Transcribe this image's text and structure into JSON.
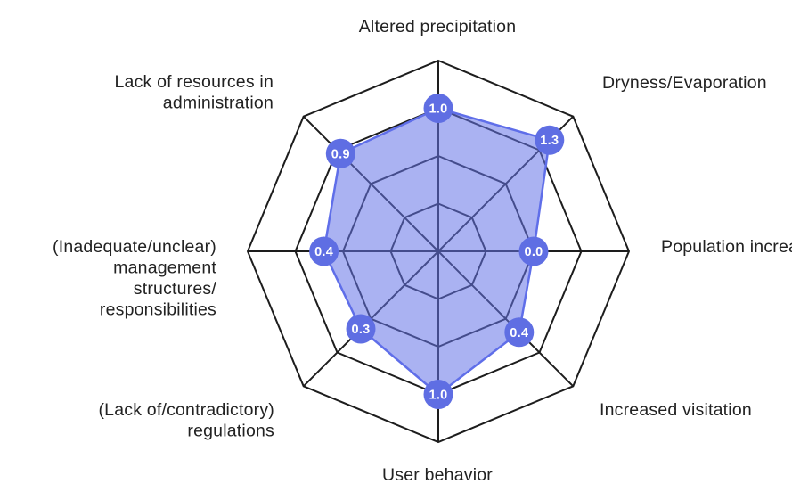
{
  "chart_data": {
    "type": "radar",
    "title": "",
    "axes_count": 8,
    "categories": [
      "Altered precipitation",
      "Dryness/Evaporation",
      "Population increase",
      "Increased visitation",
      "User behavior",
      "(Lack of/contradictory) regulations",
      "(Inadequate/unclear) management structures/responsibilities",
      "Lack of resources in administration"
    ],
    "axes": [
      {
        "label": "Altered precipitation",
        "lines": [
          "Altered precipitation"
        ],
        "value": 1.0,
        "display": "1.0"
      },
      {
        "label": "Dryness/Evaporation",
        "lines": [
          "Dryness/Evaporation"
        ],
        "value": 1.3,
        "display": "1.3"
      },
      {
        "label": "Population increase",
        "lines": [
          "Population increase"
        ],
        "value": 0.0,
        "display": "0.0"
      },
      {
        "label": "Increased visitation",
        "lines": [
          "Increased visitation"
        ],
        "value": 0.4,
        "display": "0.4"
      },
      {
        "label": "User behavior",
        "lines": [
          "User behavior"
        ],
        "value": 1.0,
        "display": "1.0"
      },
      {
        "label": "(Lack of/contradictory) regulations",
        "lines": [
          "(Lack of/contradictory)",
          "regulations"
        ],
        "value": 0.3,
        "display": "0.3"
      },
      {
        "label": "(Inadequate/unclear) management structures/responsibilities",
        "lines": [
          "(Inadequate/unclear)",
          "management",
          "structures/",
          "responsibilities"
        ],
        "value": 0.4,
        "display": "0.4"
      },
      {
        "label": "Lack of resources in administration",
        "lines": [
          "Lack of resources in",
          "administration"
        ],
        "value": 0.9,
        "display": "0.9"
      }
    ],
    "values": [
      1.0,
      1.3,
      0.0,
      0.4,
      1.0,
      0.3,
      0.4,
      0.9
    ],
    "scale": {
      "min": -2,
      "max": 2,
      "ring_fractions": [
        0.25,
        0.5,
        0.75,
        1.0
      ],
      "tick_labels_shown": false,
      "grid": "octagonal web with radial spokes"
    },
    "legend": {
      "shown": false
    },
    "colors": {
      "background": "#ffffff",
      "grid_line": "#1d1d1d",
      "area_fill": "#6573e8",
      "area_fill_opacity": 0.55,
      "area_stroke": "#5f6ee9",
      "marker_fill": "#5f6ee3",
      "marker_text": "#ffffff",
      "label_text": "#222222"
    }
  }
}
